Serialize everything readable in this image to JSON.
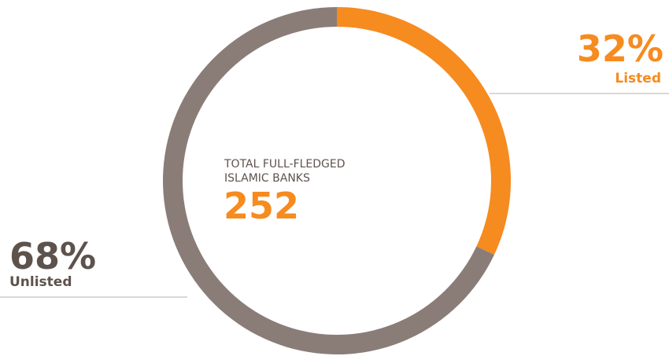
{
  "chart_data": {
    "type": "donut",
    "categories": [
      "Listed",
      "Unlisted"
    ],
    "values": [
      32,
      68
    ],
    "value_labels": [
      "32%",
      "68%"
    ],
    "colors": [
      "#f68b1f",
      "#8a7d78"
    ],
    "center_label": [
      "TOTAL FULL-FLEDGED",
      "ISLAMIC BANKS"
    ],
    "center_value": 252
  }
}
